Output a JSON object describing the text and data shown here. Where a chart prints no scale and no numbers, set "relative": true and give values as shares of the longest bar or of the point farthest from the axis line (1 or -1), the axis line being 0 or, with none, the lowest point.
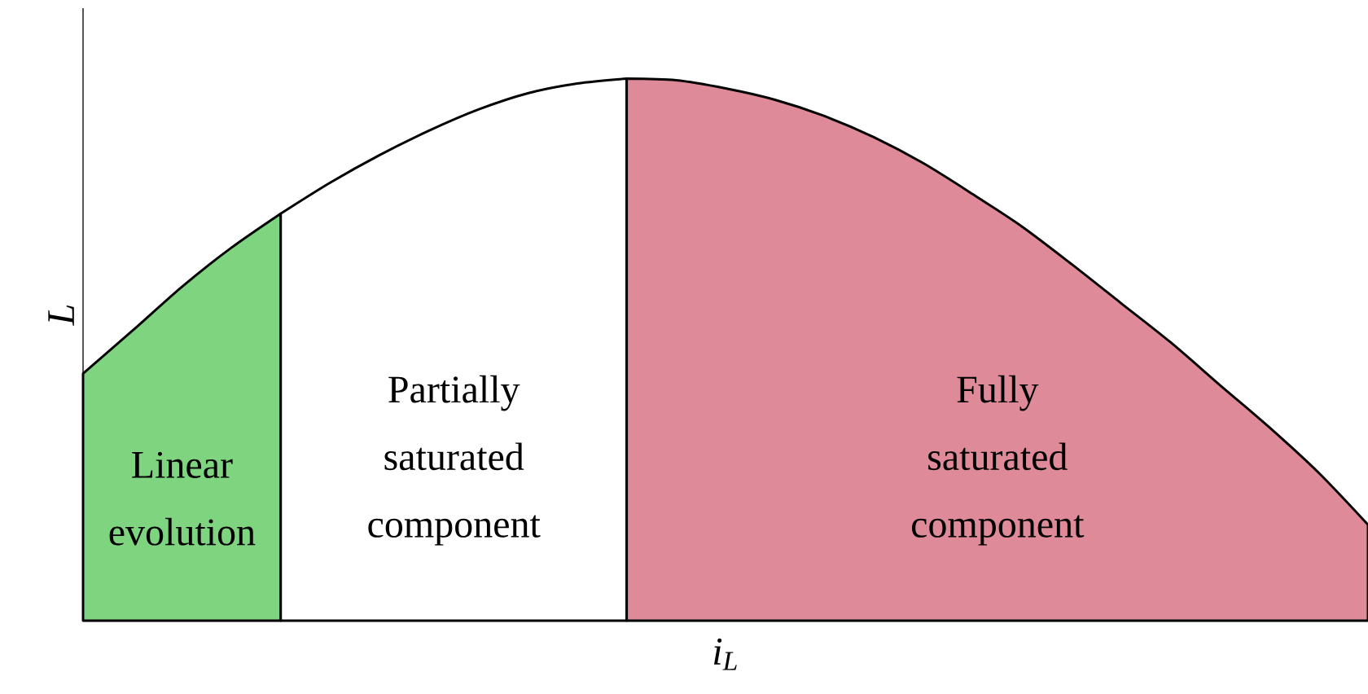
{
  "chart_data": {
    "type": "area",
    "relative": true,
    "xlabel": "i$_{L}$",
    "ylabel": "L",
    "categories": [
      null,
      null,
      null,
      null,
      null,
      null,
      null,
      null,
      null,
      null,
      null,
      null,
      null,
      null,
      null,
      null,
      null,
      null,
      null,
      null,
      null,
      null,
      null,
      null,
      null,
      null,
      null
    ],
    "series": [
      {
        "color": "#7fd47f",
        "values": [
          0.456,
          0.535,
          0.616,
          0.688,
          0.751,
          null,
          null,
          null,
          null,
          null,
          null,
          null,
          null,
          null,
          null,
          null,
          null,
          null,
          null,
          null,
          null,
          null,
          null,
          null,
          null,
          null,
          null
        ]
      },
      {
        "color": "#ffffff",
        "values": [
          null,
          null,
          null,
          null,
          0.751,
          0.808,
          0.859,
          0.904,
          0.943,
          0.973,
          0.991,
          1.0,
          null,
          null,
          null,
          null,
          null,
          null,
          null,
          null,
          null,
          null,
          null,
          null,
          null,
          null,
          null
        ]
      },
      {
        "color": "#df8a98",
        "values": [
          null,
          null,
          null,
          null,
          null,
          null,
          null,
          null,
          null,
          null,
          null,
          1.0,
          0.997,
          0.982,
          0.961,
          0.931,
          0.892,
          0.844,
          0.787,
          0.727,
          0.658,
          0.586,
          0.514,
          0.435,
          0.357,
          0.273,
          0.177
        ]
      }
    ],
    "annotations": [
      "Linear evolution",
      "Partially saturated component",
      "Fully saturated component"
    ]
  }
}
